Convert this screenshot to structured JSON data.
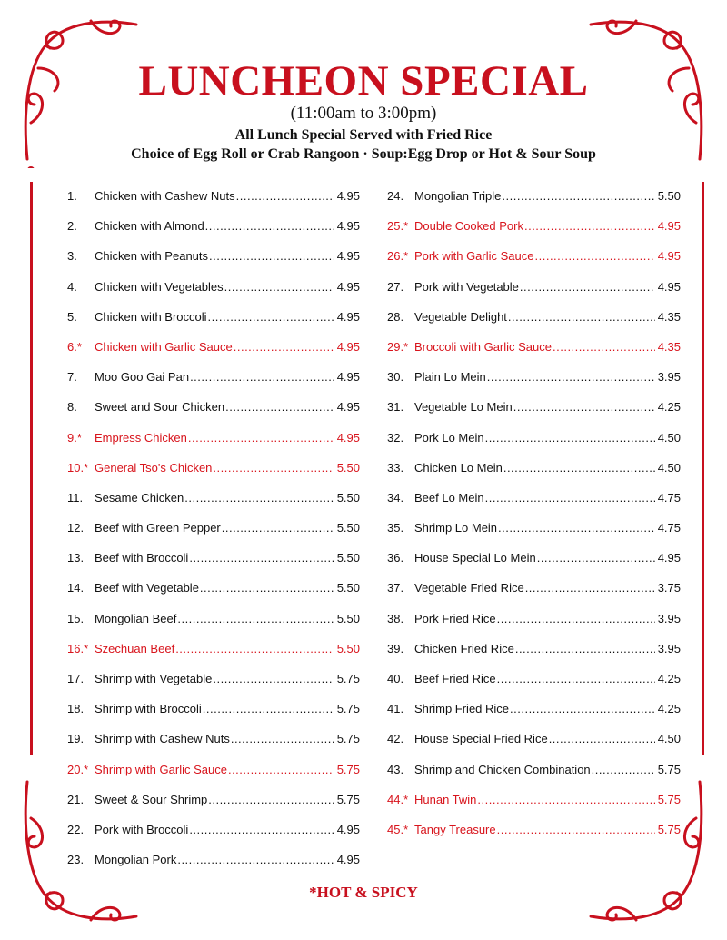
{
  "header": {
    "title": "LUNCHEON SPECIAL",
    "hours": "(11:00am to 3:00pm)",
    "line1": "All Lunch Special Served with Fried Rice",
    "line2": "Choice of Egg Roll or Crab Rangoon · Soup:Egg Drop or Hot & Sour Soup"
  },
  "colors": {
    "accent": "#c8101e",
    "hot_item": "#d8141c",
    "text": "#111111"
  },
  "left_items": [
    {
      "num": "1.",
      "name": "Chicken with Cashew Nuts",
      "price": "4.95",
      "hot": false
    },
    {
      "num": "2.",
      "name": "Chicken with Almond",
      "price": "4.95",
      "hot": false
    },
    {
      "num": "3.",
      "name": "Chicken with Peanuts",
      "price": "4.95",
      "hot": false
    },
    {
      "num": "4.",
      "name": "Chicken with Vegetables",
      "price": "4.95",
      "hot": false
    },
    {
      "num": "5.",
      "name": "Chicken with Broccoli",
      "price": "4.95",
      "hot": false
    },
    {
      "num": "6.*",
      "name": "Chicken with Garlic Sauce",
      "price": "4.95",
      "hot": true
    },
    {
      "num": "7.",
      "name": "Moo Goo Gai Pan",
      "price": "4.95",
      "hot": false
    },
    {
      "num": "8.",
      "name": "Sweet and Sour Chicken",
      "price": "4.95",
      "hot": false
    },
    {
      "num": "9.*",
      "name": "Empress Chicken",
      "price": "4.95",
      "hot": true
    },
    {
      "num": "10.*",
      "name": "General Tso's Chicken",
      "price": "5.50",
      "hot": true
    },
    {
      "num": "11.",
      "name": "Sesame Chicken",
      "price": "5.50",
      "hot": false
    },
    {
      "num": "12.",
      "name": "Beef with Green Pepper",
      "price": "5.50",
      "hot": false
    },
    {
      "num": "13.",
      "name": "Beef with Broccoli",
      "price": "5.50",
      "hot": false
    },
    {
      "num": "14.",
      "name": "Beef with Vegetable",
      "price": "5.50",
      "hot": false
    },
    {
      "num": "15.",
      "name": "Mongolian Beef",
      "price": "5.50",
      "hot": false
    },
    {
      "num": "16.*",
      "name": "Szechuan Beef",
      "price": "5.50",
      "hot": true
    },
    {
      "num": "17.",
      "name": "Shrimp with Vegetable",
      "price": "5.75",
      "hot": false
    },
    {
      "num": "18.",
      "name": "Shrimp with Broccoli",
      "price": "5.75",
      "hot": false
    },
    {
      "num": "19.",
      "name": "Shrimp with Cashew Nuts",
      "price": "5.75",
      "hot": false
    },
    {
      "num": "20.*",
      "name": "Shrimp with Garlic Sauce",
      "price": "5.75",
      "hot": true
    },
    {
      "num": "21.",
      "name": "Sweet & Sour Shrimp",
      "price": "5.75",
      "hot": false
    },
    {
      "num": "22.",
      "name": "Pork with Broccoli",
      "price": "4.95",
      "hot": false
    },
    {
      "num": "23.",
      "name": "Mongolian Pork",
      "price": "4.95",
      "hot": false
    }
  ],
  "right_items": [
    {
      "num": "24.",
      "name": "Mongolian Triple",
      "price": "5.50",
      "hot": false
    },
    {
      "num": "25.*",
      "name": "Double Cooked Pork",
      "price": "4.95",
      "hot": true
    },
    {
      "num": "26.*",
      "name": "Pork with Garlic Sauce",
      "price": "4.95",
      "hot": true
    },
    {
      "num": "27.",
      "name": "Pork with Vegetable",
      "price": "4.95",
      "hot": false
    },
    {
      "num": "28.",
      "name": "Vegetable Delight",
      "price": "4.35",
      "hot": false
    },
    {
      "num": "29.*",
      "name": "Broccoli with Garlic Sauce",
      "price": "4.35",
      "hot": true
    },
    {
      "num": "30.",
      "name": "Plain Lo Mein",
      "price": "3.95",
      "hot": false
    },
    {
      "num": "31.",
      "name": "Vegetable Lo Mein",
      "price": "4.25",
      "hot": false
    },
    {
      "num": "32.",
      "name": "Pork Lo Mein",
      "price": "4.50",
      "hot": false
    },
    {
      "num": "33.",
      "name": "Chicken Lo Mein",
      "price": "4.50",
      "hot": false
    },
    {
      "num": "34.",
      "name": "Beef Lo Mein",
      "price": "4.75",
      "hot": false
    },
    {
      "num": "35.",
      "name": "Shrimp Lo Mein",
      "price": "4.75",
      "hot": false
    },
    {
      "num": "36.",
      "name": "House Special Lo Mein",
      "price": "4.95",
      "hot": false
    },
    {
      "num": "37.",
      "name": "Vegetable Fried Rice",
      "price": "3.75",
      "hot": false
    },
    {
      "num": "38.",
      "name": "Pork Fried Rice",
      "price": "3.95",
      "hot": false
    },
    {
      "num": "39.",
      "name": "Chicken Fried Rice",
      "price": "3.95",
      "hot": false
    },
    {
      "num": "40.",
      "name": "Beef Fried Rice",
      "price": "4.25",
      "hot": false
    },
    {
      "num": "41.",
      "name": "Shrimp Fried Rice",
      "price": "4.25",
      "hot": false
    },
    {
      "num": "42.",
      "name": "House Special Fried Rice",
      "price": "4.50",
      "hot": false
    },
    {
      "num": "43.",
      "name": "Shrimp and Chicken Combination",
      "price": "5.75",
      "hot": false
    },
    {
      "num": "44.*",
      "name": "Hunan Twin",
      "price": "5.75",
      "hot": true
    },
    {
      "num": "45.*",
      "name": "Tangy Treasure",
      "price": "5.75",
      "hot": true
    }
  ],
  "footer": {
    "note": "*HOT & SPICY"
  }
}
